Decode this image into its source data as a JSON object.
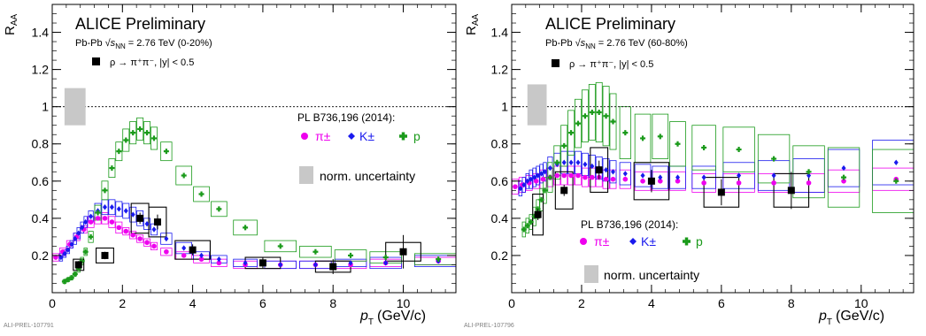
{
  "figure": {
    "colors": {
      "pion": "#ee00ee",
      "kaon": "#1a1aee",
      "proton": "#1a9a1a",
      "rho": "#000000",
      "norm_box": "#c8c8c8",
      "frame": "#000000"
    }
  },
  "chart_data": [
    {
      "type": "scatter",
      "id": "left",
      "panel_id": "ALI-PREL-107791",
      "title": "ALICE Preliminary",
      "system_prefix": "Pb-Pb ",
      "energy_symbol": "√s",
      "energy_subscript": "NN",
      "energy_suffix": " = 2.76 TeV (0-20%)",
      "xlabel_main": "p",
      "xlabel_sub": "T",
      "xlabel_unit": "(GeV/c)",
      "ylabel_main": "R",
      "ylabel_sub": "AA",
      "xlim": [
        0,
        11.5
      ],
      "ylim": [
        0,
        1.55
      ],
      "xticks": [
        0,
        2,
        4,
        6,
        8,
        10
      ],
      "yticks": [
        0.2,
        0.4,
        0.6,
        0.8,
        1,
        1.2,
        1.4
      ],
      "xtick_labels": [
        "0",
        "2",
        "4",
        "6",
        "8",
        "10"
      ],
      "ytick_labels": [
        "0.2",
        "0.4",
        "0.6",
        "0.8",
        "1",
        "1.2",
        "1.4"
      ],
      "reference_line": 1,
      "norm_box": {
        "x": [
          0.35,
          0.95
        ],
        "y": [
          0.9,
          1.1
        ]
      },
      "rho_legend": "ρ → π⁺π⁻, |y| < 0.5",
      "ref_legend": "PL B736,196 (2014):",
      "pi_label": "π±",
      "k_label": "K±",
      "p_label": "p",
      "norm_label": "norm. uncertainty",
      "legend_placement": "top-left and right",
      "series": [
        {
          "key": "pion",
          "x": [
            0.1,
            0.3,
            0.5,
            0.7,
            0.9,
            1.1,
            1.3,
            1.5,
            1.7,
            1.9,
            2.1,
            2.3,
            2.5,
            2.7,
            2.9,
            3.25,
            3.75,
            4.25,
            4.75,
            5.5,
            6.5,
            7.5,
            8.5,
            9.5,
            11.0
          ],
          "y": [
            0.19,
            0.22,
            0.26,
            0.3,
            0.34,
            0.38,
            0.4,
            0.4,
            0.38,
            0.35,
            0.33,
            0.31,
            0.29,
            0.27,
            0.25,
            0.22,
            0.2,
            0.18,
            0.16,
            0.15,
            0.15,
            0.15,
            0.15,
            0.16,
            0.17
          ],
          "syst": [
            0.02,
            0.02,
            0.02,
            0.02,
            0.02,
            0.03,
            0.03,
            0.03,
            0.03,
            0.03,
            0.02,
            0.02,
            0.02,
            0.02,
            0.02,
            0.02,
            0.02,
            0.02,
            0.02,
            0.02,
            0.02,
            0.02,
            0.02,
            0.02,
            0.02
          ]
        },
        {
          "key": "kaon",
          "x": [
            0.25,
            0.35,
            0.45,
            0.55,
            0.65,
            0.75,
            0.85,
            0.95,
            1.1,
            1.3,
            1.5,
            1.7,
            1.9,
            2.1,
            2.3,
            2.5,
            2.7,
            2.9,
            3.25,
            3.75,
            4.25,
            4.75,
            5.5,
            6.5,
            7.5,
            8.5,
            9.5,
            11.0
          ],
          "y": [
            0.19,
            0.21,
            0.23,
            0.26,
            0.29,
            0.32,
            0.35,
            0.38,
            0.41,
            0.44,
            0.46,
            0.46,
            0.45,
            0.44,
            0.42,
            0.4,
            0.37,
            0.34,
            0.29,
            0.24,
            0.2,
            0.18,
            0.16,
            0.15,
            0.15,
            0.16,
            0.16,
            0.17
          ],
          "syst": [
            0.02,
            0.02,
            0.02,
            0.02,
            0.03,
            0.03,
            0.03,
            0.03,
            0.03,
            0.04,
            0.04,
            0.04,
            0.04,
            0.04,
            0.04,
            0.04,
            0.03,
            0.03,
            0.03,
            0.03,
            0.02,
            0.02,
            0.02,
            0.02,
            0.02,
            0.02,
            0.03,
            0.03
          ]
        },
        {
          "key": "proton",
          "x": [
            0.35,
            0.45,
            0.55,
            0.65,
            0.75,
            0.85,
            0.95,
            1.1,
            1.3,
            1.5,
            1.7,
            1.9,
            2.1,
            2.3,
            2.5,
            2.7,
            2.9,
            3.25,
            3.75,
            4.25,
            4.75,
            5.5,
            6.5,
            7.5,
            8.5,
            9.5,
            11.0
          ],
          "y": [
            0.06,
            0.07,
            0.08,
            0.1,
            0.13,
            0.17,
            0.22,
            0.3,
            0.43,
            0.55,
            0.67,
            0.76,
            0.82,
            0.86,
            0.88,
            0.86,
            0.83,
            0.76,
            0.63,
            0.53,
            0.45,
            0.35,
            0.25,
            0.22,
            0.2,
            0.19,
            0.18
          ],
          "syst": [
            0.01,
            0.01,
            0.01,
            0.01,
            0.02,
            0.02,
            0.02,
            0.03,
            0.04,
            0.05,
            0.05,
            0.05,
            0.06,
            0.06,
            0.06,
            0.06,
            0.06,
            0.05,
            0.05,
            0.04,
            0.04,
            0.04,
            0.03,
            0.03,
            0.03,
            0.03,
            0.03
          ]
        },
        {
          "key": "rho",
          "x": [
            0.75,
            1.5,
            2.5,
            3.0,
            4.0,
            6.0,
            8.0,
            10.0
          ],
          "y": [
            0.15,
            0.2,
            0.4,
            0.38,
            0.23,
            0.16,
            0.14,
            0.22
          ],
          "stat": [
            0.02,
            0.02,
            0.03,
            0.04,
            0.03,
            0.03,
            0.04,
            0.09
          ],
          "syst": [
            0.03,
            0.04,
            0.08,
            0.08,
            0.05,
            0.03,
            0.03,
            0.05
          ],
          "xw": [
            0.3,
            0.5,
            0.5,
            0.5,
            1.0,
            1.0,
            1.0,
            1.0
          ]
        }
      ]
    },
    {
      "type": "scatter",
      "id": "right",
      "panel_id": "ALI-PREL-107796",
      "title": "ALICE Preliminary",
      "system_prefix": "Pb-Pb ",
      "energy_symbol": "√s",
      "energy_subscript": "NN",
      "energy_suffix": " = 2.76 TeV (60-80%)",
      "xlabel_main": "p",
      "xlabel_sub": "T",
      "xlabel_unit": "(GeV/c)",
      "ylabel_main": "R",
      "ylabel_sub": "AA",
      "xlim": [
        0,
        11.5
      ],
      "ylim": [
        0,
        1.55
      ],
      "xticks": [
        0,
        2,
        4,
        6,
        8,
        10
      ],
      "yticks": [
        0.2,
        0.4,
        0.6,
        0.8,
        1,
        1.2,
        1.4
      ],
      "xtick_labels": [
        "0",
        "2",
        "4",
        "6",
        "8",
        "10"
      ],
      "ytick_labels": [
        "0.2",
        "0.4",
        "0.6",
        "0.8",
        "1",
        "1.2",
        "1.4"
      ],
      "reference_line": 1,
      "norm_box": {
        "x": [
          0.45,
          1.0
        ],
        "y": [
          0.9,
          1.12
        ]
      },
      "rho_legend": "ρ → π⁺π⁻, |y| < 0.5",
      "ref_legend": "PL B736,196 (2014):",
      "pi_label": "π±",
      "k_label": "K±",
      "p_label": "p",
      "norm_label": "norm. uncertainty",
      "legend_placement": "top-left and bottom-center",
      "series": [
        {
          "key": "pion",
          "x": [
            0.1,
            0.3,
            0.5,
            0.7,
            0.9,
            1.1,
            1.3,
            1.5,
            1.7,
            1.9,
            2.1,
            2.3,
            2.5,
            2.7,
            2.9,
            3.25,
            3.75,
            4.25,
            4.75,
            5.5,
            6.5,
            7.5,
            8.5,
            9.5,
            11.0
          ],
          "y": [
            0.57,
            0.58,
            0.59,
            0.6,
            0.61,
            0.62,
            0.63,
            0.63,
            0.63,
            0.63,
            0.62,
            0.62,
            0.62,
            0.61,
            0.61,
            0.61,
            0.6,
            0.6,
            0.6,
            0.59,
            0.59,
            0.59,
            0.59,
            0.6,
            0.61
          ],
          "syst": [
            0.04,
            0.04,
            0.04,
            0.04,
            0.05,
            0.05,
            0.05,
            0.05,
            0.05,
            0.05,
            0.05,
            0.05,
            0.05,
            0.05,
            0.05,
            0.05,
            0.05,
            0.05,
            0.05,
            0.05,
            0.05,
            0.05,
            0.05,
            0.06,
            0.06
          ]
        },
        {
          "key": "kaon",
          "x": [
            0.25,
            0.35,
            0.45,
            0.55,
            0.65,
            0.75,
            0.85,
            0.95,
            1.1,
            1.3,
            1.5,
            1.7,
            1.9,
            2.1,
            2.3,
            2.5,
            2.7,
            2.9,
            3.25,
            3.75,
            4.25,
            4.75,
            5.5,
            6.5,
            7.5,
            8.5,
            9.5,
            11.0
          ],
          "y": [
            0.56,
            0.58,
            0.6,
            0.61,
            0.62,
            0.63,
            0.64,
            0.65,
            0.67,
            0.69,
            0.7,
            0.7,
            0.7,
            0.69,
            0.68,
            0.67,
            0.66,
            0.65,
            0.64,
            0.63,
            0.62,
            0.62,
            0.62,
            0.63,
            0.63,
            0.63,
            0.67,
            0.7
          ],
          "syst": [
            0.04,
            0.04,
            0.04,
            0.05,
            0.05,
            0.05,
            0.05,
            0.05,
            0.06,
            0.06,
            0.06,
            0.06,
            0.06,
            0.06,
            0.06,
            0.06,
            0.06,
            0.06,
            0.06,
            0.06,
            0.06,
            0.06,
            0.06,
            0.07,
            0.08,
            0.09,
            0.1,
            0.12
          ]
        },
        {
          "key": "proton",
          "x": [
            0.35,
            0.45,
            0.55,
            0.65,
            0.75,
            0.85,
            0.95,
            1.1,
            1.3,
            1.5,
            1.7,
            1.9,
            2.1,
            2.3,
            2.5,
            2.7,
            2.9,
            3.25,
            3.75,
            4.25,
            4.75,
            5.5,
            6.5,
            7.5,
            8.5,
            9.5,
            11.0
          ],
          "y": [
            0.34,
            0.36,
            0.38,
            0.41,
            0.45,
            0.5,
            0.55,
            0.62,
            0.7,
            0.79,
            0.86,
            0.91,
            0.95,
            0.97,
            0.97,
            0.95,
            0.92,
            0.86,
            0.83,
            0.84,
            0.8,
            0.78,
            0.77,
            0.72,
            0.65,
            0.62,
            0.6
          ],
          "syst": [
            0.04,
            0.04,
            0.04,
            0.05,
            0.05,
            0.06,
            0.07,
            0.08,
            0.09,
            0.11,
            0.12,
            0.13,
            0.14,
            0.15,
            0.16,
            0.16,
            0.15,
            0.14,
            0.13,
            0.12,
            0.12,
            0.12,
            0.12,
            0.13,
            0.14,
            0.16,
            0.17
          ]
        },
        {
          "key": "rho",
          "x": [
            0.75,
            1.5,
            2.5,
            4.0,
            6.0,
            8.0
          ],
          "y": [
            0.42,
            0.55,
            0.66,
            0.6,
            0.54,
            0.55
          ],
          "stat": [
            0.03,
            0.03,
            0.05,
            0.06,
            0.07,
            0.1
          ],
          "syst": [
            0.11,
            0.1,
            0.12,
            0.1,
            0.08,
            0.09
          ],
          "xw": [
            0.3,
            0.5,
            0.5,
            1.0,
            1.0,
            1.0
          ]
        }
      ]
    }
  ]
}
